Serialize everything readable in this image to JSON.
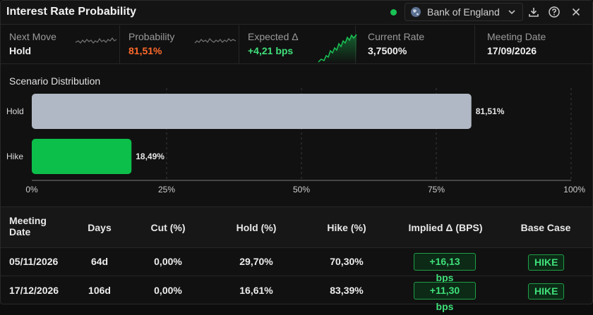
{
  "header": {
    "title": "Interest Rate Probability",
    "bank": "Bank of England",
    "live_color": "#19c254"
  },
  "stats": [
    {
      "label": "Next Move",
      "value": "Hold",
      "value_color": "#f0f0f0"
    },
    {
      "label": "Probability",
      "value": "81,51%",
      "value_color": "#ff6a2b"
    },
    {
      "label": "Expected Δ",
      "value": "+4,21 bps",
      "value_color": "#3fe07a"
    },
    {
      "label": "Current Rate",
      "value": "3,7500%",
      "value_color": "#f0f0f0"
    },
    {
      "label": "Meeting Date",
      "value": "17/09/2026",
      "value_color": "#f0f0f0"
    }
  ],
  "chart": {
    "title": "Scenario Distribution"
  },
  "chart_data": {
    "type": "bar",
    "orientation": "horizontal",
    "title": "Scenario Distribution",
    "categories": [
      "Hold",
      "Hike"
    ],
    "values": [
      81.51,
      18.49
    ],
    "value_labels": [
      "81,51%",
      "18,49%"
    ],
    "colors": [
      "#b1b8c5",
      "#0cbf4a"
    ],
    "xlim": [
      0,
      100
    ],
    "x_ticks": [
      "0%",
      "25%",
      "50%",
      "75%",
      "100%"
    ],
    "grid": true
  },
  "table": {
    "headers": {
      "meeting_date_line1": "Meeting",
      "meeting_date_line2": "Date",
      "days": "Days",
      "cut": "Cut (%)",
      "hold": "Hold (%)",
      "hike": "Hike (%)",
      "implied": "Implied Δ (BPS)",
      "base_case": "Base Case"
    },
    "rows": [
      {
        "date": "05/11/2026",
        "days": "64d",
        "cut": "0,00%",
        "hold": "29,70%",
        "hike": "70,30%",
        "implied": "+16,13 bps",
        "base_case": "HIKE"
      },
      {
        "date": "17/12/2026",
        "days": "106d",
        "cut": "0,00%",
        "hold": "16,61%",
        "hike": "83,39%",
        "implied": "+11,30 bps",
        "base_case": "HIKE"
      }
    ]
  }
}
